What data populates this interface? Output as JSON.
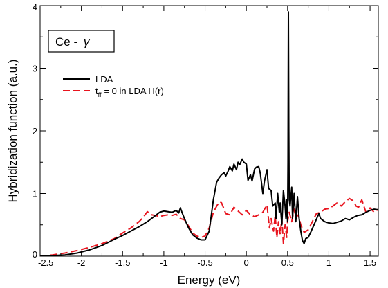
{
  "chart_data": {
    "type": "line",
    "title": "",
    "xlabel": "Energy (eV)",
    "ylabel": "Hybridization function (a.u.)",
    "xlim": [
      -2.5,
      1.6
    ],
    "ylim": [
      0,
      4
    ],
    "xticks": [
      -2.5,
      -2,
      -1.5,
      -1,
      -0.5,
      0,
      0.5,
      1,
      1.5
    ],
    "xtick_labels": [
      "-2.5",
      "-2",
      "-1.5",
      "-1",
      "-0.5",
      "0",
      "0.5",
      "1",
      "1.5"
    ],
    "yticks": [
      0,
      1,
      2,
      3,
      4
    ],
    "ytick_labels": [
      "0",
      "1",
      "2",
      "3",
      "4"
    ],
    "grid": false,
    "legend_position": "upper-left",
    "annotation": {
      "prefix": "Ce - ",
      "symbol": "γ"
    },
    "series": [
      {
        "name": "LDA",
        "legend_label": "LDA",
        "color": "#000000",
        "style": "solid",
        "x": [
          -2.5,
          -2.35,
          -2.2,
          -2.05,
          -1.9,
          -1.75,
          -1.6,
          -1.5,
          -1.4,
          -1.3,
          -1.2,
          -1.1,
          -1.05,
          -1.0,
          -0.95,
          -0.9,
          -0.85,
          -0.82,
          -0.8,
          -0.78,
          -0.75,
          -0.7,
          -0.65,
          -0.6,
          -0.55,
          -0.5,
          -0.45,
          -0.4,
          -0.36,
          -0.33,
          -0.3,
          -0.27,
          -0.25,
          -0.22,
          -0.2,
          -0.17,
          -0.15,
          -0.12,
          -0.1,
          -0.08,
          -0.05,
          -0.03,
          0.0,
          0.02,
          0.05,
          0.07,
          0.1,
          0.12,
          0.15,
          0.17,
          0.2,
          0.22,
          0.25,
          0.27,
          0.3,
          0.32,
          0.35,
          0.36,
          0.38,
          0.4,
          0.41,
          0.43,
          0.45,
          0.47,
          0.48,
          0.49,
          0.5,
          0.505,
          0.51,
          0.515,
          0.52,
          0.53,
          0.55,
          0.56,
          0.58,
          0.6,
          0.62,
          0.64,
          0.66,
          0.68,
          0.7,
          0.72,
          0.75,
          0.78,
          0.82,
          0.86,
          0.88,
          0.9,
          0.95,
          1.0,
          1.05,
          1.1,
          1.15,
          1.2,
          1.25,
          1.3,
          1.35,
          1.4,
          1.45,
          1.5,
          1.55,
          1.6
        ],
        "y": [
          0.0,
          0.01,
          0.02,
          0.05,
          0.1,
          0.17,
          0.27,
          0.33,
          0.4,
          0.47,
          0.55,
          0.65,
          0.7,
          0.72,
          0.71,
          0.7,
          0.73,
          0.69,
          0.77,
          0.7,
          0.6,
          0.45,
          0.34,
          0.29,
          0.26,
          0.26,
          0.4,
          0.9,
          1.18,
          1.25,
          1.3,
          1.33,
          1.28,
          1.36,
          1.43,
          1.36,
          1.47,
          1.38,
          1.5,
          1.46,
          1.55,
          1.5,
          1.47,
          1.21,
          1.3,
          1.2,
          1.39,
          1.42,
          1.43,
          1.32,
          1.0,
          1.2,
          1.38,
          1.08,
          1.05,
          0.8,
          0.85,
          0.6,
          1.0,
          0.7,
          0.85,
          0.5,
          1.05,
          0.8,
          0.6,
          0.9,
          0.55,
          1.5,
          3.9,
          2.0,
          0.9,
          0.8,
          1.1,
          0.6,
          1.0,
          0.55,
          0.95,
          0.6,
          0.4,
          0.25,
          0.2,
          0.28,
          0.3,
          0.38,
          0.5,
          0.62,
          0.68,
          0.6,
          0.55,
          0.53,
          0.52,
          0.54,
          0.56,
          0.6,
          0.58,
          0.62,
          0.65,
          0.66,
          0.7,
          0.73,
          0.75,
          0.74
        ]
      },
      {
        "name": "tff0",
        "legend_label": "t",
        "legend_subscript": "ff",
        "legend_suffix": "= 0  in LDA H(r)",
        "color": "#e8141e",
        "style": "dashed",
        "x": [
          -2.5,
          -2.35,
          -2.2,
          -2.05,
          -1.9,
          -1.75,
          -1.6,
          -1.5,
          -1.4,
          -1.3,
          -1.25,
          -1.2,
          -1.15,
          -1.1,
          -1.05,
          -1.0,
          -0.95,
          -0.9,
          -0.85,
          -0.8,
          -0.75,
          -0.7,
          -0.65,
          -0.6,
          -0.55,
          -0.5,
          -0.45,
          -0.4,
          -0.35,
          -0.32,
          -0.3,
          -0.27,
          -0.25,
          -0.2,
          -0.15,
          -0.1,
          -0.05,
          0.0,
          0.05,
          0.1,
          0.15,
          0.2,
          0.25,
          0.28,
          0.3,
          0.33,
          0.35,
          0.37,
          0.39,
          0.41,
          0.43,
          0.45,
          0.47,
          0.49,
          0.5,
          0.52,
          0.55,
          0.58,
          0.6,
          0.63,
          0.66,
          0.7,
          0.75,
          0.8,
          0.85,
          0.9,
          0.95,
          1.0,
          1.05,
          1.1,
          1.15,
          1.2,
          1.25,
          1.3,
          1.33,
          1.36,
          1.4,
          1.45,
          1.5,
          1.55,
          1.6
        ],
        "y": [
          0.0,
          0.02,
          0.05,
          0.09,
          0.14,
          0.2,
          0.28,
          0.37,
          0.45,
          0.55,
          0.62,
          0.71,
          0.66,
          0.65,
          0.63,
          0.65,
          0.66,
          0.65,
          0.67,
          0.6,
          0.58,
          0.48,
          0.37,
          0.32,
          0.3,
          0.32,
          0.45,
          0.7,
          0.82,
          0.87,
          0.85,
          0.75,
          0.68,
          0.66,
          0.78,
          0.72,
          0.66,
          0.73,
          0.66,
          0.63,
          0.66,
          0.7,
          0.82,
          0.45,
          0.6,
          0.4,
          0.65,
          0.3,
          0.55,
          0.35,
          0.6,
          0.2,
          0.5,
          0.3,
          0.55,
          0.7,
          0.55,
          0.75,
          0.62,
          0.66,
          0.5,
          0.38,
          0.42,
          0.55,
          0.68,
          0.7,
          0.75,
          0.76,
          0.8,
          0.85,
          0.8,
          0.87,
          0.92,
          0.88,
          0.8,
          0.78,
          0.9,
          0.7,
          0.77,
          0.7,
          0.75
        ]
      }
    ]
  }
}
